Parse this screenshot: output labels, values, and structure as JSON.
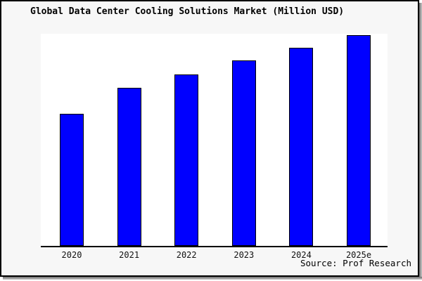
{
  "title": "Global Data Center Cooling Solutions Market (Million USD)",
  "source": "Source: Prof Research",
  "colors": {
    "panel_background": "#f7f7f7",
    "plot_background": "#ffffff",
    "panel_border": "#000000",
    "shadow": "#6e6e6e",
    "bar_fill": "#0000ff",
    "bar_border": "#000000",
    "axis": "#000000",
    "text": "#000000"
  },
  "chart_data": {
    "type": "bar",
    "title": "Global Data Center Cooling Solutions Market (Million USD)",
    "categories": [
      "2020",
      "2021",
      "2022",
      "2023",
      "2024",
      "2025e"
    ],
    "values": [
      188,
      225,
      244,
      264,
      282,
      300
    ],
    "value_note": "y-axis unlabeled in source image; values are relative magnitudes estimated from bar heights",
    "xlabel": "",
    "ylabel": "",
    "ylim": [
      0,
      302
    ],
    "grid": false,
    "legend": false,
    "annotation": "Source: Prof Research"
  }
}
